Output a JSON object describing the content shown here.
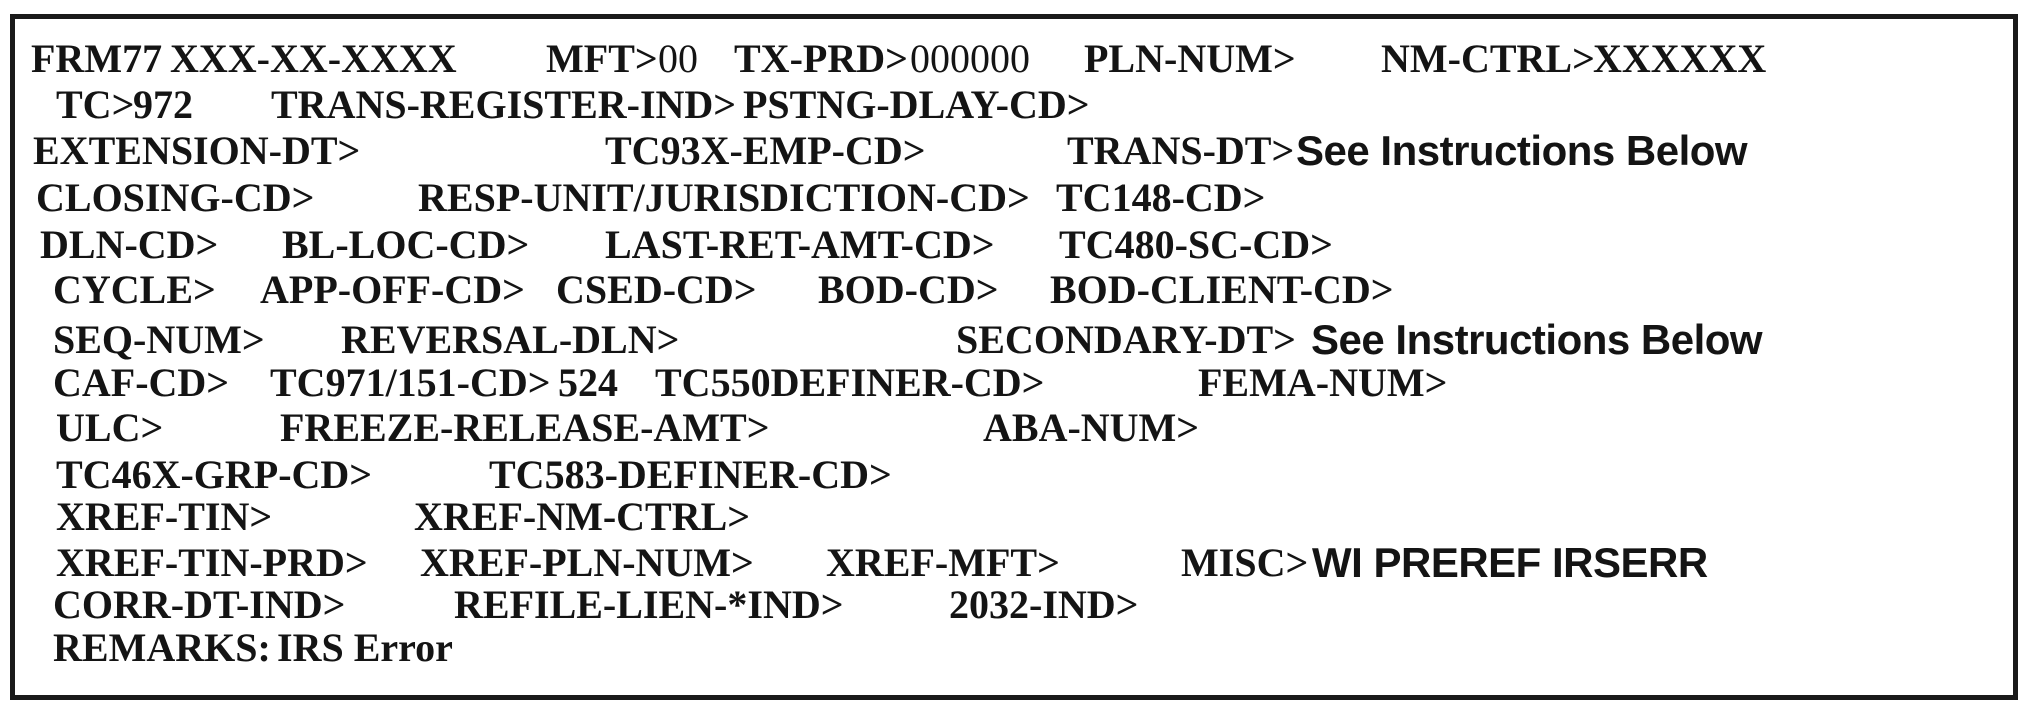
{
  "colors": {
    "text": "#141414",
    "border": "#1a1a1a",
    "background": "#ffffff"
  },
  "lines": [
    {
      "segments": [
        {
          "name": "command-code",
          "text": "FRM77",
          "kind": "label"
        },
        {
          "name": "tin-value",
          "text": "XXX-XX-XXXX",
          "kind": "value-bold"
        },
        {
          "name": "mft-label",
          "text": "MFT>",
          "kind": "label"
        },
        {
          "name": "mft-value",
          "text": "00",
          "kind": "value-reg"
        },
        {
          "name": "tx-prd-label",
          "text": "TX-PRD>",
          "kind": "label"
        },
        {
          "name": "tx-prd-value",
          "text": "000000",
          "kind": "value-reg"
        },
        {
          "name": "pln-num-label",
          "text": "PLN-NUM>",
          "kind": "label"
        },
        {
          "name": "nm-ctrl-label",
          "text": "NM-CTRL>",
          "kind": "label"
        },
        {
          "name": "nm-ctrl-value",
          "text": "XXXXXX",
          "kind": "value-bold"
        }
      ]
    },
    {
      "segments": [
        {
          "name": "tc-label",
          "text": "TC>",
          "kind": "label"
        },
        {
          "name": "tc-value",
          "text": "972",
          "kind": "value-bold"
        },
        {
          "name": "trans-register-ind-label",
          "text": "TRANS-REGISTER-IND>",
          "kind": "label"
        },
        {
          "name": "pstng-dlay-cd-label",
          "text": "PSTNG-DLAY-CD>",
          "kind": "label"
        }
      ]
    },
    {
      "segments": [
        {
          "name": "extension-dt-label",
          "text": "EXTENSION-DT>",
          "kind": "label"
        },
        {
          "name": "tc93x-emp-cd-label",
          "text": "TC93X-EMP-CD>",
          "kind": "label"
        },
        {
          "name": "trans-dt-label",
          "text": "TRANS-DT>",
          "kind": "label"
        },
        {
          "name": "trans-dt-value",
          "text": "See Instructions Below",
          "kind": "value-sans"
        }
      ]
    },
    {
      "segments": [
        {
          "name": "closing-cd-label",
          "text": "CLOSING-CD>",
          "kind": "label"
        },
        {
          "name": "resp-unit-jurisdiction-cd-label",
          "text": "RESP-UNIT/JURISDICTION-CD>",
          "kind": "label"
        },
        {
          "name": "tc148-cd-label",
          "text": "TC148-CD>",
          "kind": "label"
        }
      ]
    },
    {
      "segments": [
        {
          "name": "dln-cd-label",
          "text": "DLN-CD>",
          "kind": "label"
        },
        {
          "name": "bl-loc-cd-label",
          "text": "BL-LOC-CD>",
          "kind": "label"
        },
        {
          "name": "last-ret-amt-cd-label",
          "text": "LAST-RET-AMT-CD>",
          "kind": "label"
        },
        {
          "name": "tc480-sc-cd-label",
          "text": "TC480-SC-CD>",
          "kind": "label"
        }
      ]
    },
    {
      "segments": [
        {
          "name": "cycle-label",
          "text": "CYCLE>",
          "kind": "label"
        },
        {
          "name": "app-off-cd-label",
          "text": "APP-OFF-CD>",
          "kind": "label"
        },
        {
          "name": "csed-cd-label",
          "text": "CSED-CD>",
          "kind": "label"
        },
        {
          "name": "bod-cd-label",
          "text": "BOD-CD>",
          "kind": "label"
        },
        {
          "name": "bod-client-cd-label",
          "text": "BOD-CLIENT-CD>",
          "kind": "label"
        }
      ]
    },
    {
      "segments": [
        {
          "name": "seq-num-label",
          "text": "SEQ-NUM>",
          "kind": "label"
        },
        {
          "name": "reversal-dln-label",
          "text": "REVERSAL-DLN>",
          "kind": "label"
        },
        {
          "name": "secondary-dt-label",
          "text": "SECONDARY-DT>",
          "kind": "label"
        },
        {
          "name": "secondary-dt-value",
          "text": "See Instructions Below",
          "kind": "value-sans"
        }
      ]
    },
    {
      "segments": [
        {
          "name": "caf-cd-label",
          "text": "CAF-CD>",
          "kind": "label"
        },
        {
          "name": "tc971-151-cd-label",
          "text": "TC971/151-CD>",
          "kind": "label"
        },
        {
          "name": "tc971-151-cd-value",
          "text": "524",
          "kind": "value-bold"
        },
        {
          "name": "tc550definer-cd-label",
          "text": "TC550DEFINER-CD>",
          "kind": "label"
        },
        {
          "name": "fema-num-label",
          "text": "FEMA-NUM>",
          "kind": "label"
        }
      ]
    },
    {
      "segments": [
        {
          "name": "ulc-label",
          "text": "ULC>",
          "kind": "label"
        },
        {
          "name": "freeze-release-amt-label",
          "text": "FREEZE-RELEASE-AMT>",
          "kind": "label"
        },
        {
          "name": "aba-num-label",
          "text": "ABA-NUM>",
          "kind": "label"
        }
      ]
    },
    {
      "segments": [
        {
          "name": "tc46x-grp-cd-label",
          "text": "TC46X-GRP-CD>",
          "kind": "label"
        },
        {
          "name": "tc583-definer-cd-label",
          "text": "TC583-DEFINER-CD>",
          "kind": "label"
        }
      ]
    },
    {
      "segments": [
        {
          "name": "xref-tin-label",
          "text": "XREF-TIN>",
          "kind": "label"
        },
        {
          "name": "xref-nm-ctrl-label",
          "text": "XREF-NM-CTRL>",
          "kind": "label"
        }
      ]
    },
    {
      "segments": [
        {
          "name": "xref-tin-prd-label",
          "text": "XREF-TIN-PRD>",
          "kind": "label"
        },
        {
          "name": "xref-pln-num-label",
          "text": "XREF-PLN-NUM>",
          "kind": "label"
        },
        {
          "name": "xref-mft-label",
          "text": "XREF-MFT>",
          "kind": "label"
        },
        {
          "name": "misc-label",
          "text": "MISC>",
          "kind": "label"
        },
        {
          "name": "misc-value",
          "text": "WI PREREF IRSERR",
          "kind": "value-sans"
        }
      ]
    },
    {
      "segments": [
        {
          "name": "corr-dt-ind-label",
          "text": "CORR-DT-IND>",
          "kind": "label"
        },
        {
          "name": "refile-lien-ind-label",
          "text": "REFILE-LIEN-*IND>",
          "kind": "label"
        },
        {
          "name": "2032-ind-label",
          "text": "2032-IND>",
          "kind": "label"
        }
      ]
    },
    {
      "segments": [
        {
          "name": "remarks-label",
          "text": "REMARKS:",
          "kind": "label"
        },
        {
          "name": "remarks-value",
          "text": "IRS Error",
          "kind": "value-bold"
        }
      ]
    }
  ]
}
